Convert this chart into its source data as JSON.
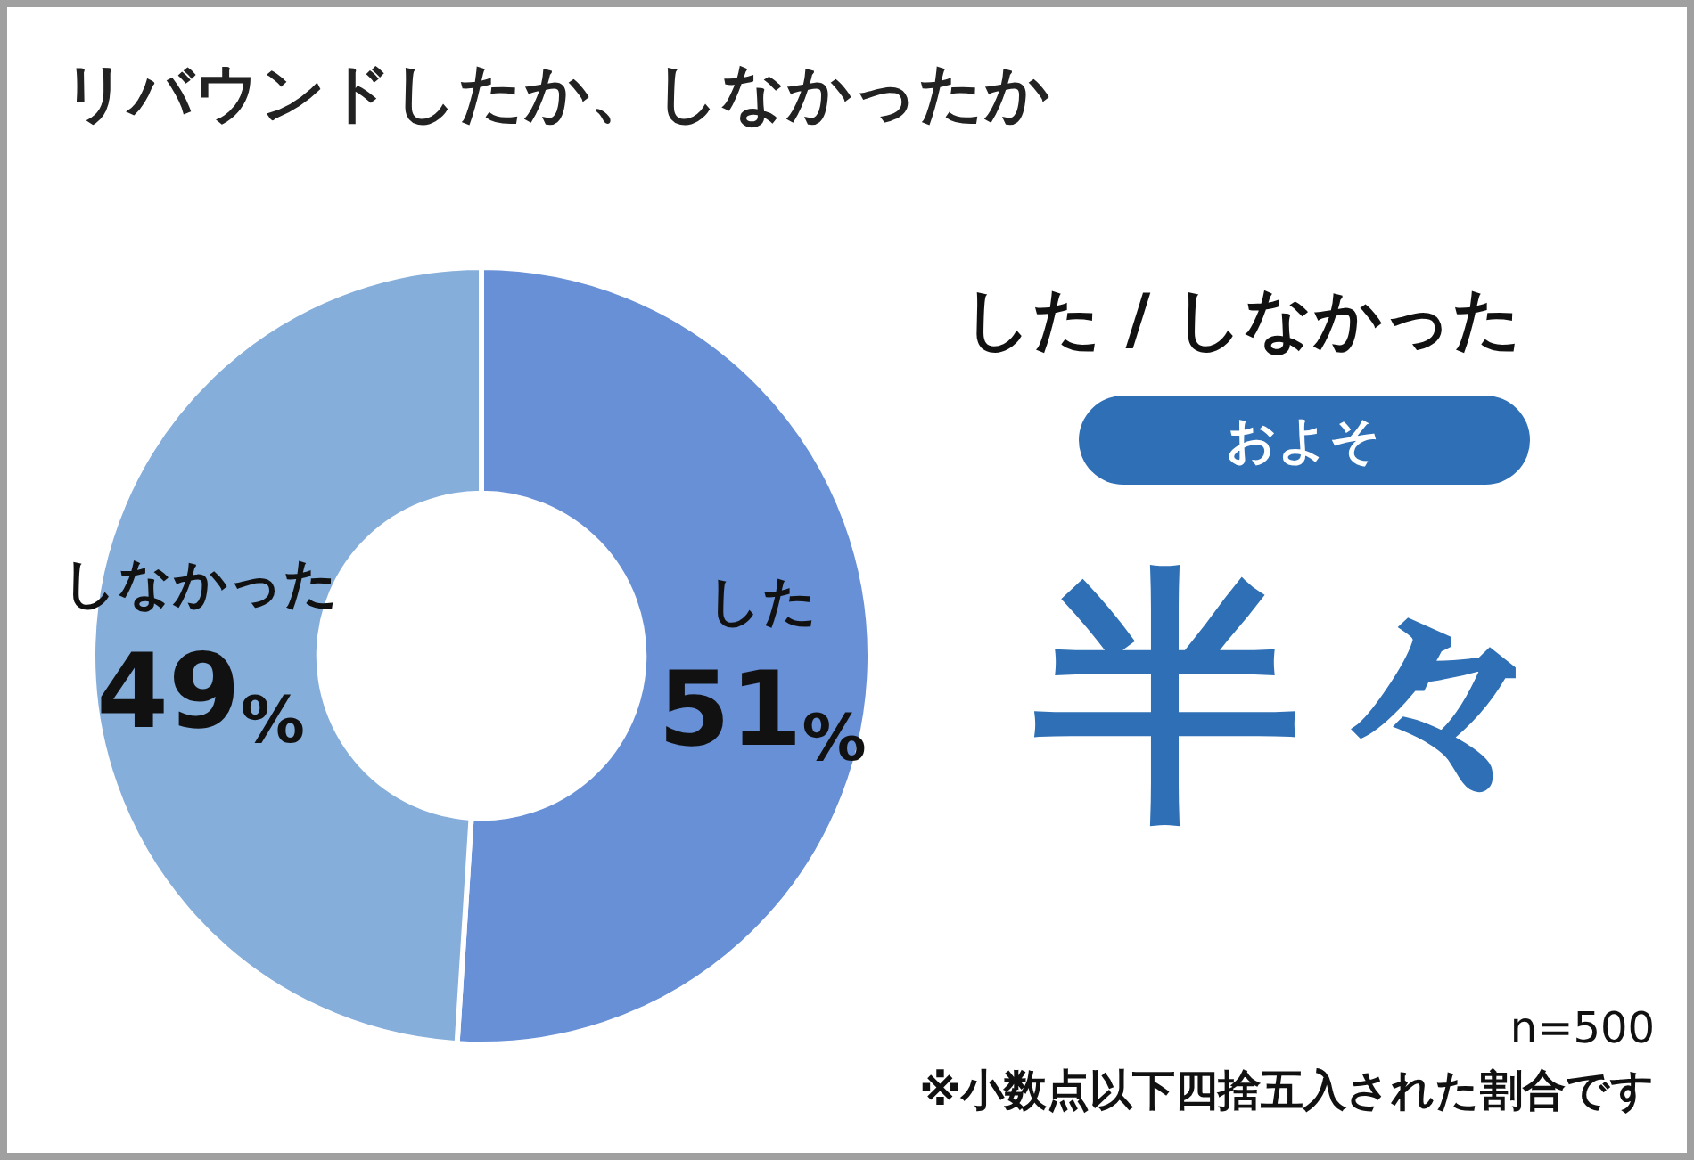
{
  "chart_data": {
    "type": "donut",
    "title": "リバウンドしたか、しなかったか",
    "categories": [
      "した",
      "しなかった"
    ],
    "values": [
      51,
      49
    ],
    "colors": [
      "#6890d6",
      "#86aedb"
    ],
    "value_labels": [
      "51%",
      "49%"
    ],
    "legend": false,
    "annotations": [
      "した / しなかった",
      "およそ",
      "半々",
      "n=500",
      "※小数点以下四捨五入された割合です"
    ]
  }
}
